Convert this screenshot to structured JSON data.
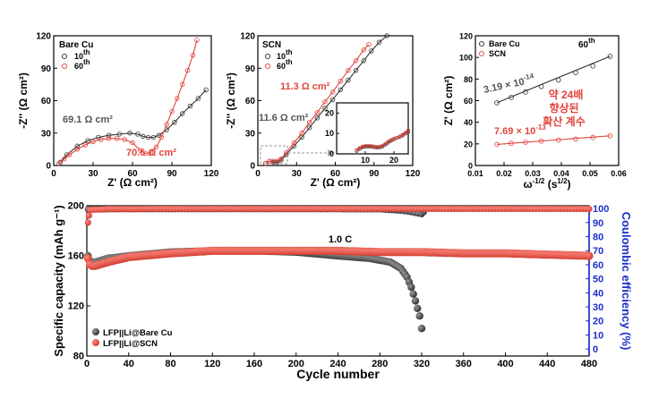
{
  "chart_data": [
    {
      "type": "scatter",
      "panel": "a",
      "inset_label": "Bare Cu",
      "xlabel": "Z' (Ω cm²)",
      "ylabel": "-Z'' (Ω cm²)",
      "xlim": [
        0,
        120
      ],
      "ylim": [
        0,
        120
      ],
      "xticks": [
        "0",
        "30",
        "60",
        "90",
        "120"
      ],
      "yticks": [
        "0",
        "30",
        "60",
        "90",
        "120"
      ],
      "legend": [
        {
          "label": "10",
          "sup": "th",
          "color": "#333333"
        },
        {
          "label": "60",
          "sup": "th",
          "color": "#e0443a"
        }
      ],
      "annotations": [
        {
          "text": "69.1 Ω cm²",
          "color": "#555555"
        },
        {
          "text": "70.6 Ω cm²",
          "color": "#e0443a"
        }
      ],
      "series": [
        {
          "name": "10th",
          "color": "#333333",
          "points": [
            [
              5,
              3
            ],
            [
              10,
              10
            ],
            [
              18,
              18
            ],
            [
              26,
              23
            ],
            [
              34,
              26
            ],
            [
              42,
              28
            ],
            [
              50,
              29
            ],
            [
              58,
              30
            ],
            [
              64,
              29
            ],
            [
              68,
              27
            ],
            [
              72,
              26
            ],
            [
              76,
              26
            ],
            [
              80,
              28
            ],
            [
              86,
              33
            ],
            [
              92,
              40
            ],
            [
              98,
              48
            ],
            [
              104,
              55
            ],
            [
              110,
              62
            ],
            [
              116,
              70
            ]
          ]
        },
        {
          "name": "60th",
          "color": "#e0443a",
          "points": [
            [
              4,
              2
            ],
            [
              8,
              6
            ],
            [
              12,
              10
            ],
            [
              18,
              15
            ],
            [
              24,
              19
            ],
            [
              30,
              22
            ],
            [
              36,
              24
            ],
            [
              42,
              25
            ],
            [
              48,
              25
            ],
            [
              54,
              24
            ],
            [
              60,
              21
            ],
            [
              66,
              14
            ],
            [
              70,
              11
            ],
            [
              74,
              12
            ],
            [
              78,
              17
            ],
            [
              82,
              26
            ],
            [
              86,
              38
            ],
            [
              90,
              50
            ],
            [
              94,
              62
            ],
            [
              98,
              75
            ],
            [
              102,
              88
            ],
            [
              106,
              102
            ],
            [
              109,
              116
            ]
          ]
        }
      ]
    },
    {
      "type": "scatter",
      "panel": "b",
      "inset_label": "SCN",
      "xlabel": "Z' (Ω cm²)",
      "ylabel": "-Z'' (Ω cm²)",
      "xlim": [
        0,
        120
      ],
      "ylim": [
        0,
        120
      ],
      "xticks": [
        "0",
        "30",
        "60",
        "90",
        "120"
      ],
      "yticks": [
        "0",
        "30",
        "60",
        "90",
        "120"
      ],
      "legend": [
        {
          "label": "10",
          "sup": "th",
          "color": "#333333"
        },
        {
          "label": "60",
          "sup": "th",
          "color": "#e0443a"
        }
      ],
      "annotations": [
        {
          "text": "11.3 Ω cm²",
          "color": "#e0443a"
        },
        {
          "text": "11.6 Ω cm²",
          "color": "#555555"
        }
      ],
      "inset": {
        "xlim": [
          0,
          25
        ],
        "ylim": [
          0,
          25
        ],
        "xticks": [
          "10",
          "20"
        ],
        "yticks": [
          "0",
          "10",
          "20"
        ]
      },
      "series": [
        {
          "name": "10th",
          "color": "#333333",
          "points": [
            [
              6,
              2
            ],
            [
              9,
              4
            ],
            [
              12,
              3
            ],
            [
              15,
              3
            ],
            [
              18,
              5
            ],
            [
              22,
              10
            ],
            [
              28,
              18
            ],
            [
              34,
              26
            ],
            [
              40,
              35
            ],
            [
              46,
              44
            ],
            [
              52,
              53
            ],
            [
              58,
              61
            ],
            [
              64,
              70
            ],
            [
              70,
              79
            ],
            [
              76,
              88
            ],
            [
              82,
              97
            ],
            [
              88,
              106
            ],
            [
              94,
              114
            ],
            [
              100,
              120
            ]
          ]
        },
        {
          "name": "60th",
          "color": "#e0443a",
          "points": [
            [
              6,
              2
            ],
            [
              9,
              4
            ],
            [
              12,
              4
            ],
            [
              15,
              4
            ],
            [
              18,
              6
            ],
            [
              22,
              12
            ],
            [
              28,
              21
            ],
            [
              34,
              30
            ],
            [
              40,
              40
            ],
            [
              46,
              49
            ],
            [
              52,
              59
            ],
            [
              58,
              68
            ],
            [
              64,
              78
            ],
            [
              70,
              88
            ],
            [
              76,
              97
            ],
            [
              82,
              107
            ],
            [
              86,
              112
            ]
          ]
        }
      ],
      "inset_series": [
        {
          "name": "10th",
          "color": "#333333",
          "points": [
            [
              7,
              1.5
            ],
            [
              8,
              2.5
            ],
            [
              9,
              3.2
            ],
            [
              10,
              3.5
            ],
            [
              11,
              3.6
            ],
            [
              12,
              3.5
            ],
            [
              13,
              3.3
            ],
            [
              14,
              3.1
            ],
            [
              15,
              3.2
            ],
            [
              16,
              3.6
            ],
            [
              17,
              4.5
            ],
            [
              18,
              5.5
            ],
            [
              19,
              6.5
            ],
            [
              20,
              7.2
            ],
            [
              21,
              7.8
            ],
            [
              22,
              8.3
            ],
            [
              23,
              9.0
            ],
            [
              24,
              10.0
            ],
            [
              25,
              11.0
            ]
          ]
        },
        {
          "name": "60th",
          "color": "#e0443a",
          "points": [
            [
              7,
              1.8
            ],
            [
              8,
              2.8
            ],
            [
              9,
              3.5
            ],
            [
              10,
              3.9
            ],
            [
              11,
              4.0
            ],
            [
              12,
              3.9
            ],
            [
              13,
              3.6
            ],
            [
              14,
              3.4
            ],
            [
              15,
              3.5
            ],
            [
              16,
              4.0
            ],
            [
              17,
              5.0
            ],
            [
              18,
              6.0
            ],
            [
              19,
              6.8
            ],
            [
              20,
              7.4
            ],
            [
              21,
              7.9
            ],
            [
              22,
              8.5
            ],
            [
              23,
              9.3
            ],
            [
              24,
              10.3
            ],
            [
              25,
              11.5
            ]
          ]
        }
      ]
    },
    {
      "type": "scatter",
      "panel": "c",
      "inset_label": "60th",
      "xlabel": "ω^-1/2 (s^1/2)",
      "ylabel": "Z' (Ω cm²)",
      "xlim": [
        0.01,
        0.06
      ],
      "ylim": [
        0,
        120
      ],
      "xticks": [
        "0.01",
        "0.02",
        "0.03",
        "0.04",
        "0.05",
        "0.06"
      ],
      "yticks": [
        "0",
        "20",
        "40",
        "60",
        "80",
        "100",
        "120"
      ],
      "legend": [
        {
          "label": "Bare Cu",
          "color": "#333333"
        },
        {
          "label": "SCN",
          "color": "#e0443a"
        }
      ],
      "annotations": [
        {
          "text": "3.19 × 10",
          "sup": "-14",
          "color": "#555555"
        },
        {
          "text": "7.69 × 10",
          "sup": "-13",
          "color": "#e0443a"
        },
        {
          "text": "약 24배",
          "color": "#e0443a"
        },
        {
          "text": "향상된",
          "color": "#e0443a"
        },
        {
          "text": "확산 계수",
          "color": "#e0443a"
        }
      ],
      "series": [
        {
          "name": "Bare Cu",
          "color": "#333333",
          "points": [
            [
              0.0175,
              58
            ],
            [
              0.0225,
              63
            ],
            [
              0.0275,
              68
            ],
            [
              0.033,
              73
            ],
            [
              0.039,
              79
            ],
            [
              0.045,
              86
            ],
            [
              0.051,
              92
            ],
            [
              0.057,
              101
            ]
          ]
        },
        {
          "name": "SCN",
          "color": "#e0443a",
          "points": [
            [
              0.0175,
              19.5
            ],
            [
              0.0225,
              20.5
            ],
            [
              0.0275,
              21.5
            ],
            [
              0.033,
              22.5
            ],
            [
              0.039,
              23.5
            ],
            [
              0.045,
              24.5
            ],
            [
              0.051,
              26
            ],
            [
              0.057,
              27.5
            ]
          ]
        }
      ]
    },
    {
      "type": "scatter",
      "panel": "d",
      "xlabel": "Cycle number",
      "ylabel": "Specific capacity (mAh g⁻¹)",
      "y2label": "Coulombic efficiency (%)",
      "xlim": [
        0,
        480
      ],
      "ylim": [
        80,
        200
      ],
      "y2lim": [
        -5,
        102
      ],
      "xticks": [
        "0",
        "40",
        "80",
        "120",
        "160",
        "200",
        "240",
        "280",
        "320",
        "360",
        "400",
        "440",
        "480"
      ],
      "yticks": [
        "80",
        "120",
        "160",
        "200"
      ],
      "y2ticks": [
        "0",
        "10",
        "20",
        "30",
        "40",
        "50",
        "60",
        "70",
        "80",
        "90",
        "100"
      ],
      "annotation": "1.0 C",
      "legend": [
        {
          "label": "LFP||Li@Bare Cu",
          "color": "#444444"
        },
        {
          "label": "LFP||Li@SCN",
          "color": "#e0443a"
        }
      ],
      "capacity_series": [
        {
          "name": "LFP||Li@Bare Cu",
          "color": "#555555",
          "points": [
            [
              1,
              160
            ],
            [
              3,
              156
            ],
            [
              5,
              155
            ],
            [
              8,
              155
            ],
            [
              12,
              156
            ],
            [
              20,
              158
            ],
            [
              40,
              160
            ],
            [
              80,
              163
            ],
            [
              120,
              164
            ],
            [
              160,
              164
            ],
            [
              200,
              163
            ],
            [
              240,
              160
            ],
            [
              270,
              158
            ],
            [
              290,
              155
            ],
            [
              300,
              150
            ],
            [
              306,
              143
            ],
            [
              310,
              135
            ],
            [
              314,
              124
            ],
            [
              318,
              112
            ],
            [
              320,
              102
            ]
          ]
        },
        {
          "name": "LFP||Li@SCN",
          "color": "#e0443a",
          "points": [
            [
              1,
              158
            ],
            [
              3,
              153
            ],
            [
              5,
              152
            ],
            [
              8,
              152
            ],
            [
              12,
              153
            ],
            [
              20,
              155
            ],
            [
              40,
              159
            ],
            [
              80,
              162
            ],
            [
              120,
              164
            ],
            [
              160,
              164
            ],
            [
              200,
              164
            ],
            [
              240,
              164
            ],
            [
              280,
              163
            ],
            [
              320,
              163
            ],
            [
              360,
              162
            ],
            [
              400,
              162
            ],
            [
              440,
              161
            ],
            [
              480,
              160
            ]
          ]
        }
      ],
      "ce_series": [
        {
          "name": "LFP||Li@Bare Cu",
          "color": "#555555",
          "points": [
            [
              1,
              99.5
            ],
            [
              40,
              99.6
            ],
            [
              120,
              99.6
            ],
            [
              200,
              99.6
            ],
            [
              280,
              99.5
            ],
            [
              300,
              98.5
            ],
            [
              310,
              97.5
            ],
            [
              320,
              96.0
            ],
            [
              322,
              97.5
            ]
          ]
        },
        {
          "name": "LFP||Li@SCN",
          "color": "#e0443a",
          "points": [
            [
              1,
              90
            ],
            [
              2,
              95
            ],
            [
              3,
              99
            ],
            [
              20,
              99.7
            ],
            [
              120,
              99.8
            ],
            [
              240,
              99.8
            ],
            [
              360,
              99.8
            ],
            [
              480,
              99.8
            ]
          ]
        }
      ]
    }
  ]
}
